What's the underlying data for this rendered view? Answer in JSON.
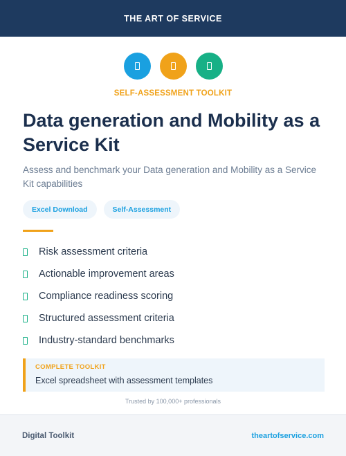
{
  "header": {
    "brand": "THE ART OF SERVICE",
    "background": "#1e3a5f"
  },
  "icons": [
    {
      "name": "document-icon",
      "color": "#1aa0e0"
    },
    {
      "name": "document-icon",
      "color": "#f0a21a"
    },
    {
      "name": "document-icon",
      "color": "#17b086"
    }
  ],
  "kicker": "SELF-ASSESSMENT TOOLKIT",
  "title": "Data generation and Mobility as a Service Kit",
  "subtitle": "Assess and benchmark your Data generation and Mobility as a Service Kit capabilities",
  "tags": [
    "Excel Download",
    "Self-Assessment"
  ],
  "features": [
    "Risk assessment criteria",
    "Actionable improvement areas",
    "Compliance readiness scoring",
    "Structured assessment criteria",
    "Industry-standard benchmarks"
  ],
  "callout": {
    "label": "COMPLETE TOOLKIT",
    "text": "Excel spreadsheet with assessment templates"
  },
  "trust": "Trusted by 100,000+ professionals",
  "footer": {
    "left": "Digital Toolkit",
    "right": "theartofservice.com"
  },
  "colors": {
    "accent_orange": "#f0a21a",
    "accent_blue": "#1aa0e0",
    "accent_green": "#17b086"
  }
}
